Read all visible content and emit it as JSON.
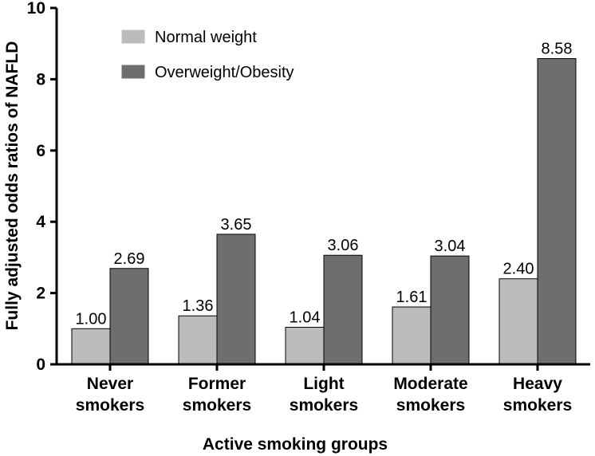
{
  "chart_data": {
    "type": "bar",
    "title": "",
    "xlabel": "Active smoking groups",
    "ylabel": "Fully adjusted odds ratios of NAFLD",
    "ylim": [
      0,
      10
    ],
    "yticks": [
      0,
      2,
      4,
      6,
      8,
      10
    ],
    "categories": [
      [
        "Never",
        "smokers"
      ],
      [
        "Former",
        "smokers"
      ],
      [
        "Light",
        "smokers"
      ],
      [
        "Moderate",
        "smokers"
      ],
      [
        "Heavy",
        "smokers"
      ]
    ],
    "series": [
      {
        "name": "Normal weight",
        "color": "#bcbcbc",
        "values": [
          1.0,
          1.36,
          1.04,
          1.61,
          2.4
        ],
        "labels": [
          "1.00",
          "1.36",
          "1.04",
          "1.61",
          "2.40"
        ]
      },
      {
        "name": "Overweight/Obesity",
        "color": "#6e6e6e",
        "values": [
          2.69,
          3.65,
          3.06,
          3.04,
          8.58
        ],
        "labels": [
          "2.69",
          "3.65",
          "3.06",
          "3.04",
          "8.58"
        ]
      }
    ],
    "grid": false,
    "legend_position": "top-left"
  }
}
